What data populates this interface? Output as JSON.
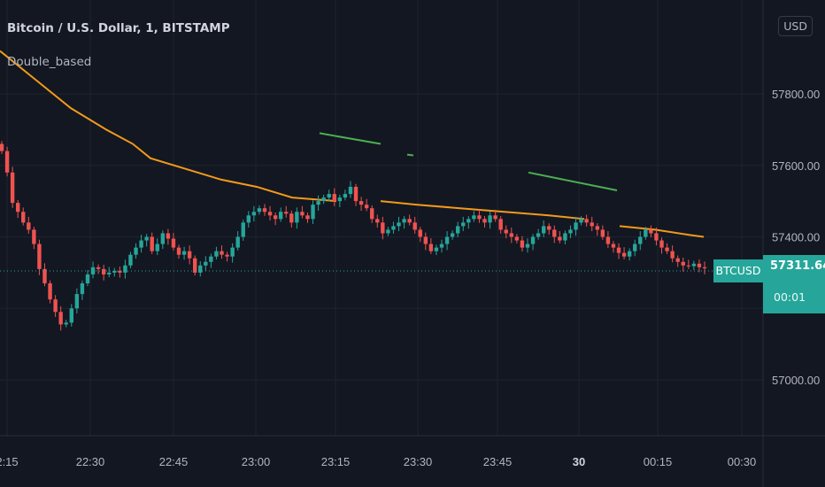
{
  "header": {
    "title": "Bitcoin / U.S. Dollar, 1, BITSTAMP",
    "indicator": "Double_based",
    "currency": "USD"
  },
  "price_scale": {
    "labels": [
      "57800.00",
      "57600.00",
      "57400.00",
      "57000.00"
    ]
  },
  "last_price": {
    "symbol": "BTCUSD",
    "value": "57311.64",
    "countdown": "00:01"
  },
  "colors": {
    "background": "#131722",
    "up": "#26a69a",
    "down": "#ef5350",
    "ma": "#f29a1a",
    "indicator": "#4caf50",
    "grid": "#1f2330"
  },
  "chart_data": {
    "type": "candlestick",
    "title": "Bitcoin / U.S. Dollar, 1, BITSTAMP",
    "xlabel": "",
    "ylabel": "",
    "ylim": [
      56870,
      57970
    ],
    "grid": true,
    "x_ticks": [
      "2:15",
      "22:30",
      "22:45",
      "23:00",
      "23:15",
      "23:30",
      "23:45",
      "30",
      "00:15",
      "00:30"
    ],
    "y_ticks": [
      57000,
      57400,
      57600,
      57800
    ],
    "candles_close": [
      57640,
      57580,
      57495,
      57470,
      57440,
      57420,
      57380,
      57310,
      57270,
      57225,
      57190,
      57155,
      57160,
      57200,
      57240,
      57270,
      57295,
      57315,
      57310,
      57295,
      57300,
      57305,
      57300,
      57320,
      57350,
      57370,
      57390,
      57400,
      57360,
      57380,
      57410,
      57395,
      57370,
      57350,
      57360,
      57340,
      57300,
      57320,
      57330,
      57345,
      57360,
      57350,
      57345,
      57370,
      57400,
      57440,
      57460,
      57470,
      57480,
      57470,
      57460,
      57450,
      57470,
      57465,
      57440,
      57470,
      57460,
      57450,
      57490,
      57500,
      57510,
      57520,
      57500,
      57510,
      57520,
      57540,
      57500,
      57490,
      57480,
      57450,
      57440,
      57410,
      57420,
      57430,
      57440,
      57450,
      57440,
      57420,
      57400,
      57380,
      57360,
      57370,
      57380,
      57400,
      57410,
      57430,
      57440,
      57450,
      57460,
      57450,
      57440,
      57460,
      57450,
      57420,
      57410,
      57400,
      57390,
      57370,
      57380,
      57400,
      57410,
      57430,
      57420,
      57400,
      57390,
      57410,
      57420,
      57440,
      57450,
      57440,
      57430,
      57420,
      57400,
      57380,
      57370,
      57355,
      57345,
      57360,
      57380,
      57400,
      57420,
      57410,
      57390,
      57370,
      57360,
      57340,
      57330,
      57320,
      57318,
      57325,
      57315,
      57312
    ],
    "series": [
      {
        "name": "Double_based",
        "type": "line",
        "x": [
          0,
          40,
          80,
          120,
          150,
          170,
          210,
          250,
          290,
          330,
          380
        ],
        "values": [
          57920,
          57840,
          57760,
          57700,
          57660,
          57620,
          57590,
          57560,
          57540,
          57510,
          57500
        ]
      },
      {
        "name": "Double_based",
        "type": "line",
        "x": [
          430,
          470,
          520,
          570,
          620,
          660
        ],
        "values": [
          57500,
          57490,
          57480,
          57470,
          57460,
          57450
        ]
      },
      {
        "name": "Double_based",
        "type": "line",
        "x": [
          700,
          740,
          780,
          795
        ],
        "values": [
          57430,
          57420,
          57405,
          57400
        ]
      }
    ],
    "indicator_segments": [
      {
        "x": [
          361,
          430
        ],
        "values": [
          57690,
          57660
        ]
      },
      {
        "x": [
          460,
          467
        ],
        "values": [
          57630,
          57628
        ]
      },
      {
        "x": [
          597,
          697
        ],
        "values": [
          57580,
          57530
        ]
      }
    ]
  }
}
